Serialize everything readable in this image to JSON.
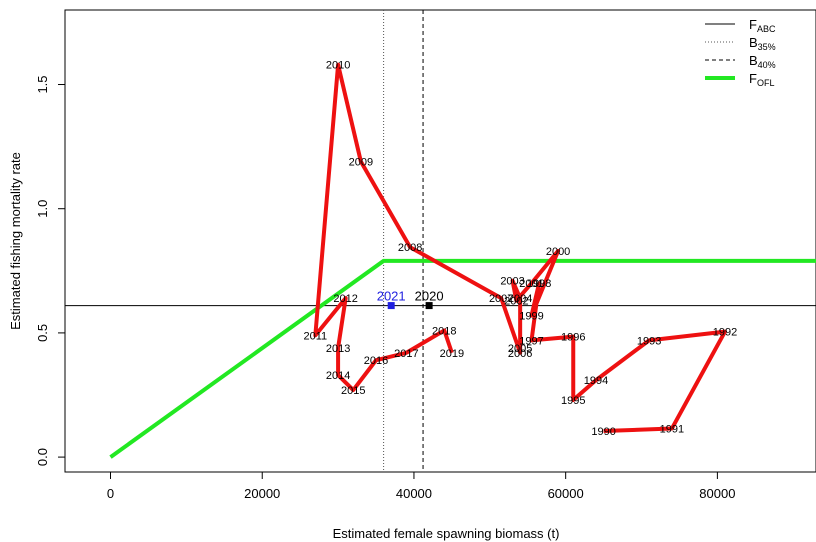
{
  "chart_data": {
    "type": "line",
    "xlabel": "Estimated female spawning biomass (t)",
    "ylabel": "Estimated fishing mortality rate",
    "xlim": [
      -6000,
      93000
    ],
    "ylim": [
      -0.06,
      1.8
    ],
    "x_ticks": [
      0,
      20000,
      40000,
      60000,
      80000
    ],
    "y_ticks": [
      0.0,
      0.5,
      1.0,
      1.5
    ],
    "x_tick_labels": [
      "0",
      "20000",
      "40000",
      "60000",
      "80000"
    ],
    "y_tick_labels": [
      "0.0",
      "0.5",
      "1.0",
      "1.5"
    ],
    "grid": false,
    "legend_position": "top-right",
    "legend": [
      {
        "id": "fabc",
        "base": "F",
        "sub": "ABC",
        "style": "solid",
        "color": "#000000"
      },
      {
        "id": "b35",
        "base": "B",
        "sub": "35%",
        "style": "dotted",
        "color": "#555555"
      },
      {
        "id": "b40",
        "base": "B",
        "sub": "40%",
        "style": "dashed",
        "color": "#000000"
      },
      {
        "id": "fofl",
        "base": "F",
        "sub": "OFL",
        "style": "solid",
        "color": "#22e822"
      }
    ],
    "reference_lines": {
      "fabc_y": 0.61,
      "b35_x": 36000,
      "b40_x": 41200
    },
    "fofl_curve": [
      [
        0,
        0.0
      ],
      [
        36000,
        0.79
      ],
      [
        93000,
        0.79
      ]
    ],
    "trajectory_color": "#ee1111",
    "trajectory": [
      {
        "year": "1990",
        "x": 65000,
        "y": 0.105
      },
      {
        "year": "1991",
        "x": 74000,
        "y": 0.115
      },
      {
        "year": "1992",
        "x": 81000,
        "y": 0.505
      },
      {
        "year": "1993",
        "x": 71000,
        "y": 0.47
      },
      {
        "year": "1994",
        "x": 64000,
        "y": 0.31
      },
      {
        "year": "1995",
        "x": 61000,
        "y": 0.23
      },
      {
        "year": "1996",
        "x": 61000,
        "y": 0.485
      },
      {
        "year": "1997",
        "x": 55500,
        "y": 0.47
      },
      {
        "year": "1998",
        "x": 56500,
        "y": 0.7
      },
      {
        "year": "1999",
        "x": 55500,
        "y": 0.57
      },
      {
        "year": "2000",
        "x": 59000,
        "y": 0.83
      },
      {
        "year": "2001",
        "x": 55500,
        "y": 0.7
      },
      {
        "year": "2002",
        "x": 53500,
        "y": 0.63
      },
      {
        "year": "2003",
        "x": 53000,
        "y": 0.71
      },
      {
        "year": "2004",
        "x": 54000,
        "y": 0.64
      },
      {
        "year": "2005",
        "x": 54000,
        "y": 0.44
      },
      {
        "year": "2006",
        "x": 54000,
        "y": 0.42
      },
      {
        "year": "2007",
        "x": 51500,
        "y": 0.64
      },
      {
        "year": "2008",
        "x": 39500,
        "y": 0.845
      },
      {
        "year": "2009",
        "x": 33000,
        "y": 1.19
      },
      {
        "year": "2010",
        "x": 30000,
        "y": 1.58
      },
      {
        "year": "2011",
        "x": 27000,
        "y": 0.49
      },
      {
        "year": "2012",
        "x": 31000,
        "y": 0.64
      },
      {
        "year": "2013",
        "x": 30000,
        "y": 0.44
      },
      {
        "year": "2014",
        "x": 30000,
        "y": 0.33
      },
      {
        "year": "2015",
        "x": 32000,
        "y": 0.27
      },
      {
        "year": "2016",
        "x": 35000,
        "y": 0.39
      },
      {
        "year": "2017",
        "x": 39000,
        "y": 0.42
      },
      {
        "year": "2018",
        "x": 44000,
        "y": 0.51
      },
      {
        "year": "2019",
        "x": 45000,
        "y": 0.42
      }
    ],
    "projections": [
      {
        "year": "2020",
        "x": 42000,
        "y": 0.61,
        "color": "#000000"
      },
      {
        "year": "2021",
        "x": 37000,
        "y": 0.61,
        "color": "#1f1fe0"
      }
    ]
  }
}
